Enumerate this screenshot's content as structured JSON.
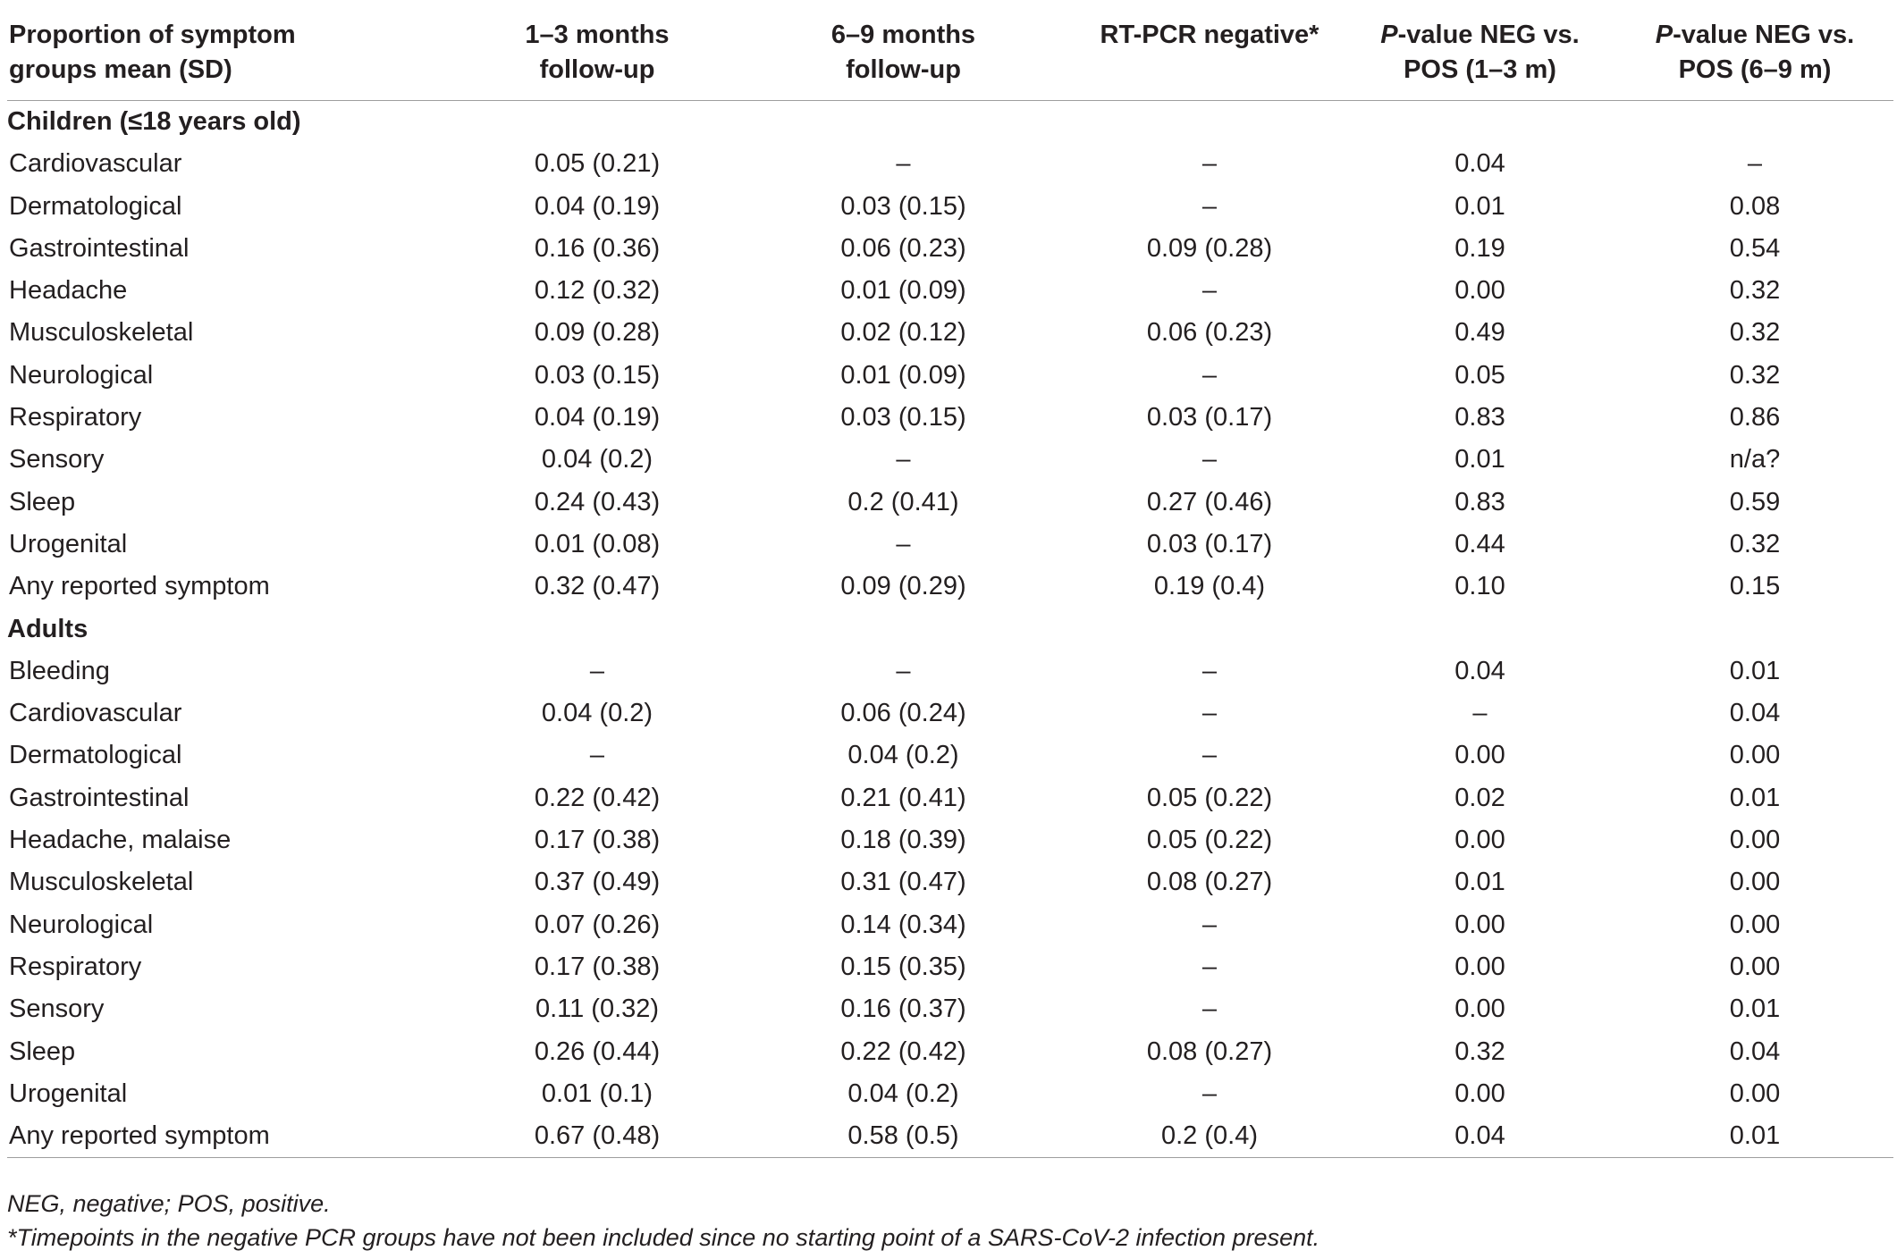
{
  "table": {
    "headers": [
      {
        "line1": "Proportion of symptom",
        "line2": "groups mean (SD)"
      },
      {
        "line1": "1–3 months",
        "line2": "follow-up"
      },
      {
        "line1": "6–9 months",
        "line2": "follow-up"
      },
      {
        "line1": "RT-PCR negative*",
        "line2": ""
      },
      {
        "p": "P",
        "line1": "-value NEG vs.",
        "line2": "POS (1–3 m)"
      },
      {
        "p": "P",
        "line1": "-value NEG vs.",
        "line2": "POS (6–9 m)"
      }
    ],
    "sections": [
      {
        "title": "Children (≤18 years old)",
        "rows": [
          {
            "label": "Cardiovascular",
            "m13": "0.05 (0.21)",
            "m69": "–",
            "neg": "–",
            "p13": "0.04",
            "p69": "–"
          },
          {
            "label": "Dermatological",
            "m13": "0.04 (0.19)",
            "m69": "0.03 (0.15)",
            "neg": "–",
            "p13": "0.01",
            "p69": "0.08"
          },
          {
            "label": "Gastrointestinal",
            "m13": "0.16 (0.36)",
            "m69": "0.06 (0.23)",
            "neg": "0.09 (0.28)",
            "p13": "0.19",
            "p69": "0.54"
          },
          {
            "label": "Headache",
            "m13": "0.12 (0.32)",
            "m69": "0.01 (0.09)",
            "neg": "–",
            "p13": "0.00",
            "p69": "0.32"
          },
          {
            "label": "Musculoskeletal",
            "m13": "0.09 (0.28)",
            "m69": "0.02 (0.12)",
            "neg": "0.06 (0.23)",
            "p13": "0.49",
            "p69": "0.32"
          },
          {
            "label": "Neurological",
            "m13": "0.03 (0.15)",
            "m69": "0.01 (0.09)",
            "neg": "–",
            "p13": "0.05",
            "p69": "0.32"
          },
          {
            "label": "Respiratory",
            "m13": "0.04 (0.19)",
            "m69": "0.03 (0.15)",
            "neg": "0.03 (0.17)",
            "p13": "0.83",
            "p69": "0.86"
          },
          {
            "label": "Sensory",
            "m13": "0.04 (0.2)",
            "m69": "–",
            "neg": "–",
            "p13": "0.01",
            "p69": "n/a?"
          },
          {
            "label": "Sleep",
            "m13": "0.24 (0.43)",
            "m69": "0.2 (0.41)",
            "neg": "0.27 (0.46)",
            "p13": "0.83",
            "p69": "0.59"
          },
          {
            "label": "Urogenital",
            "m13": "0.01 (0.08)",
            "m69": "–",
            "neg": "0.03 (0.17)",
            "p13": "0.44",
            "p69": "0.32"
          },
          {
            "label": "Any reported symptom",
            "m13": "0.32 (0.47)",
            "m69": "0.09 (0.29)",
            "neg": "0.19 (0.4)",
            "p13": "0.10",
            "p69": "0.15"
          }
        ]
      },
      {
        "title": "Adults",
        "rows": [
          {
            "label": "Bleeding",
            "m13": "–",
            "m69": "–",
            "neg": "–",
            "p13": "0.04",
            "p69": "0.01"
          },
          {
            "label": "Cardiovascular",
            "m13": "0.04 (0.2)",
            "m69": "0.06 (0.24)",
            "neg": "–",
            "p13": "–",
            "p69": "0.04"
          },
          {
            "label": "Dermatological",
            "m13": "–",
            "m69": "0.04 (0.2)",
            "neg": "–",
            "p13": "0.00",
            "p69": "0.00"
          },
          {
            "label": "Gastrointestinal",
            "m13": "0.22 (0.42)",
            "m69": "0.21 (0.41)",
            "neg": "0.05 (0.22)",
            "p13": "0.02",
            "p69": "0.01"
          },
          {
            "label": "Headache, malaise",
            "m13": "0.17 (0.38)",
            "m69": "0.18 (0.39)",
            "neg": "0.05 (0.22)",
            "p13": "0.00",
            "p69": "0.00"
          },
          {
            "label": "Musculoskeletal",
            "m13": "0.37 (0.49)",
            "m69": "0.31 (0.47)",
            "neg": "0.08 (0.27)",
            "p13": "0.01",
            "p69": "0.00"
          },
          {
            "label": "Neurological",
            "m13": "0.07 (0.26)",
            "m69": "0.14 (0.34)",
            "neg": "–",
            "p13": "0.00",
            "p69": "0.00"
          },
          {
            "label": "Respiratory",
            "m13": "0.17 (0.38)",
            "m69": "0.15 (0.35)",
            "neg": "–",
            "p13": "0.00",
            "p69": "0.00"
          },
          {
            "label": "Sensory",
            "m13": "0.11 (0.32)",
            "m69": "0.16 (0.37)",
            "neg": "–",
            "p13": "0.00",
            "p69": "0.01"
          },
          {
            "label": "Sleep",
            "m13": "0.26 (0.44)",
            "m69": "0.22 (0.42)",
            "neg": "0.08 (0.27)",
            "p13": "0.32",
            "p69": "0.04"
          },
          {
            "label": "Urogenital",
            "m13": "0.01 (0.1)",
            "m69": "0.04 (0.2)",
            "neg": "–",
            "p13": "0.00",
            "p69": "0.00"
          },
          {
            "label": "Any reported symptom",
            "m13": "0.67 (0.48)",
            "m69": "0.58 (0.5)",
            "neg": "0.2 (0.4)",
            "p13": "0.04",
            "p69": "0.01"
          }
        ]
      }
    ]
  },
  "footnotes": {
    "abbrev": "NEG, negative; POS, positive.",
    "star": "*Timepoints in the negative PCR groups have not been included since no starting point of a SARS-CoV-2 infection present."
  }
}
